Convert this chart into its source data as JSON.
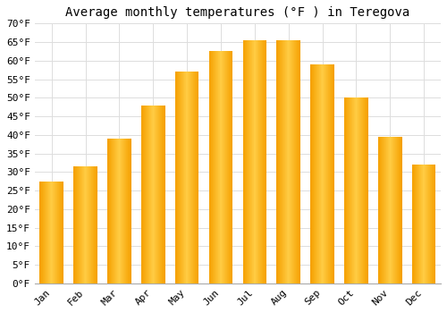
{
  "title": "Average monthly temperatures (°F ) in Teregova",
  "months": [
    "Jan",
    "Feb",
    "Mar",
    "Apr",
    "May",
    "Jun",
    "Jul",
    "Aug",
    "Sep",
    "Oct",
    "Nov",
    "Dec"
  ],
  "values": [
    27.5,
    31.5,
    39,
    48,
    57,
    62.5,
    65.5,
    65.5,
    59,
    50,
    39.5,
    32
  ],
  "bar_color_light": "#FFC93A",
  "bar_color_dark": "#F5A000",
  "ylim": [
    0,
    70
  ],
  "yticks": [
    0,
    5,
    10,
    15,
    20,
    25,
    30,
    35,
    40,
    45,
    50,
    55,
    60,
    65,
    70
  ],
  "ytick_labels": [
    "0°F",
    "5°F",
    "10°F",
    "15°F",
    "20°F",
    "25°F",
    "30°F",
    "35°F",
    "40°F",
    "45°F",
    "50°F",
    "55°F",
    "60°F",
    "65°F",
    "70°F"
  ],
  "background_color": "#ffffff",
  "grid_color": "#dddddd",
  "title_fontsize": 10,
  "tick_fontsize": 8,
  "font_family": "monospace"
}
